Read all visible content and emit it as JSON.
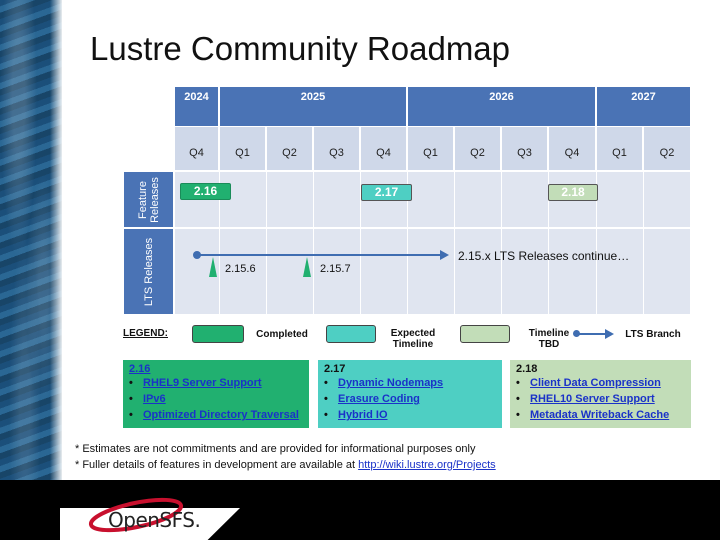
{
  "title": "Lustre Community Roadmap",
  "years": [
    "2024",
    "2025",
    "2026",
    "2027"
  ],
  "quarters": [
    "Q4",
    "Q1",
    "Q2",
    "Q3",
    "Q4",
    "Q1",
    "Q2",
    "Q3",
    "Q4",
    "Q1",
    "Q2"
  ],
  "rows": {
    "feature": "Feature\nReleases",
    "lts": "LTS Releases"
  },
  "releases": [
    {
      "label": "2.16",
      "status": "completed"
    },
    {
      "label": "2.17",
      "status": "expected"
    },
    {
      "label": "2.18",
      "status": "tbd"
    }
  ],
  "lts_releases": [
    "2.15.6",
    "2.15.7"
  ],
  "lts_continue": "2.15.x LTS Releases continue…",
  "legend": {
    "title": "LEGEND:",
    "completed": "Completed",
    "expected": "Expected Timeline",
    "tbd": "Timeline TBD",
    "branch": "LTS Branch"
  },
  "features": [
    {
      "version": "2.16",
      "items": [
        "RHEL9 Server Support",
        "IPv6",
        "Optimized Directory Traversal"
      ]
    },
    {
      "version": "2.17",
      "items": [
        "Dynamic Nodemaps",
        "Erasure Coding",
        "Hybrid IO"
      ]
    },
    {
      "version": "2.18",
      "items": [
        "Client Data Compression",
        "RHEL10 Server Support",
        "Metadata Writeback Cache"
      ]
    }
  ],
  "notes": {
    "line1": "* Estimates are not commitments and are provided for informational purposes only",
    "line2_prefix": "* Fuller details of features in development are available at ",
    "line2_link": "http://wiki.lustre.org/Projects"
  },
  "logo_text": "OpenSFS.",
  "colors": {
    "completed": "#21b070",
    "expected": "#4ecfc3",
    "tbd": "#c2ddb8",
    "header": "#4a73b5",
    "lts_branch": "#3f6db1"
  }
}
